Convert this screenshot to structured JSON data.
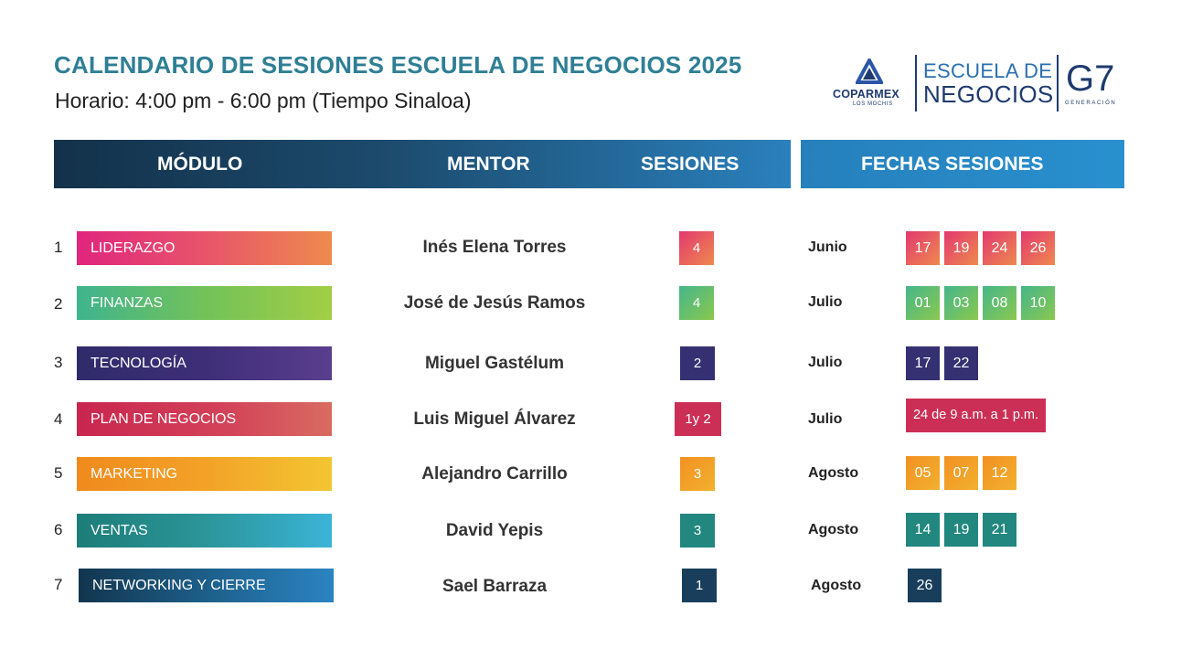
{
  "title": "CALENDARIO DE SESIONES ESCUELA DE NEGOCIOS 2025",
  "subtitle": "Horario: 4:00 pm - 6:00 pm (Tiempo Sinaloa)",
  "logos": {
    "coparmex": "COPARMEX",
    "coparmex_sub": "LOS MOCHIS",
    "escuela_line1": "ESCUELA DE",
    "escuela_line2": "NEGOCIOS",
    "g7": "G7",
    "generacion": "GENERACIÓN"
  },
  "headers": {
    "modulo": "MÓDULO",
    "mentor": "MENTOR",
    "sesiones": "SESIONES",
    "fechas": "FECHAS SESIONES"
  },
  "rows": [
    {
      "num": "1",
      "module": "LIDERAZGO",
      "mentor": "Inés Elena Torres",
      "sessions": "4",
      "month": "Junio",
      "dates": [
        "17",
        "19",
        "24",
        "26"
      ]
    },
    {
      "num": "2",
      "module": "FINANZAS",
      "mentor": "José de Jesús Ramos",
      "sessions": "4",
      "month": "Julio",
      "dates": [
        "01",
        "03",
        "08",
        "10"
      ]
    },
    {
      "num": "3",
      "module": "TECNOLOGÍA",
      "mentor": "Miguel Gastélum",
      "sessions": "2",
      "month": "Julio",
      "dates": [
        "17",
        "22"
      ]
    },
    {
      "num": "4",
      "module": "PLAN DE NEGOCIOS",
      "mentor": "Luis Miguel Álvarez",
      "sessions": "1y 2",
      "month": "Julio",
      "dates": [
        "24 de 9 a.m. a 1 p.m."
      ]
    },
    {
      "num": "5",
      "module": "MARKETING",
      "mentor": "Alejandro Carrillo",
      "sessions": "3",
      "month": "Agosto",
      "dates": [
        "05",
        "07",
        "12"
      ]
    },
    {
      "num": "6",
      "module": "VENTAS",
      "mentor": "David Yepis",
      "sessions": "3",
      "month": "Agosto",
      "dates": [
        "14",
        "19",
        "21"
      ]
    },
    {
      "num": "7",
      "module": "NETWORKING Y CIERRE",
      "mentor": "Sael Barraza",
      "sessions": "1",
      "month": "Agosto",
      "dates": [
        "26"
      ]
    }
  ]
}
